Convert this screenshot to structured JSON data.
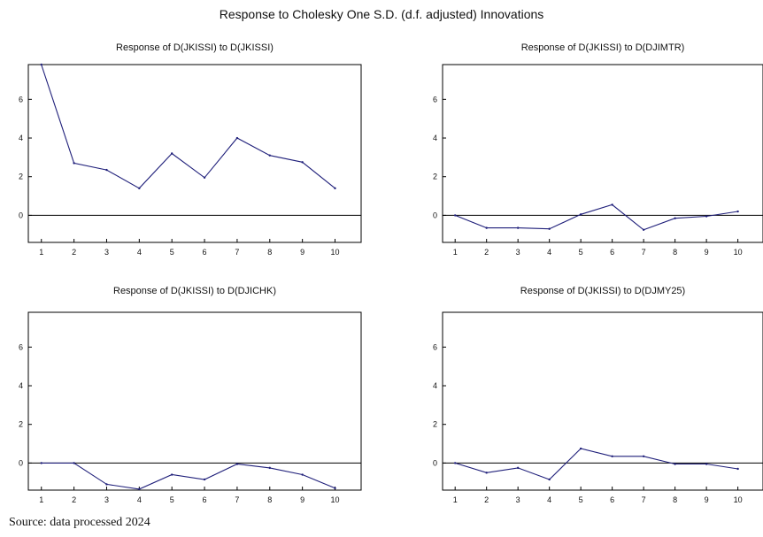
{
  "title": "Response to Cholesky One S.D. (d.f. adjusted) Innovations",
  "source": "Source: data processed 2024",
  "colors": {
    "line": "#1f1f7a",
    "frame": "#000000",
    "zero_line": "#000000"
  },
  "chart_data": [
    {
      "type": "line",
      "title": "Response of D(JKISSI) to D(JKISSI)",
      "x": [
        1,
        2,
        3,
        4,
        5,
        6,
        7,
        8,
        9,
        10
      ],
      "values": [
        7.8,
        2.7,
        2.35,
        1.4,
        3.2,
        1.95,
        4.0,
        3.1,
        2.75,
        1.4
      ],
      "xticks": [
        "1",
        "2",
        "3",
        "4",
        "5",
        "6",
        "7",
        "8",
        "9",
        "10"
      ],
      "yticks": [
        "0",
        "2",
        "4",
        "6"
      ],
      "ylim": [
        -1.4,
        7.8
      ],
      "grid": false
    },
    {
      "type": "line",
      "title": "Response of D(JKISSI) to D(DJIMTR)",
      "x": [
        1,
        2,
        3,
        4,
        5,
        6,
        7,
        8,
        9,
        10
      ],
      "values": [
        0.0,
        -0.65,
        -0.65,
        -0.7,
        0.05,
        0.55,
        -0.75,
        -0.15,
        -0.05,
        0.2
      ],
      "xticks": [
        "1",
        "2",
        "3",
        "4",
        "5",
        "6",
        "7",
        "8",
        "9",
        "10"
      ],
      "yticks": [
        "0",
        "2",
        "4",
        "6"
      ],
      "ylim": [
        -1.4,
        7.8
      ],
      "grid": false
    },
    {
      "type": "line",
      "title": "Response of D(JKISSI) to D(DJICHK)",
      "x": [
        1,
        2,
        3,
        4,
        5,
        6,
        7,
        8,
        9,
        10
      ],
      "values": [
        0.0,
        0.0,
        -1.1,
        -1.35,
        -0.6,
        -0.85,
        -0.05,
        -0.25,
        -0.6,
        -1.3
      ],
      "xticks": [
        "1",
        "2",
        "3",
        "4",
        "5",
        "6",
        "7",
        "8",
        "9",
        "10"
      ],
      "yticks": [
        "0",
        "2",
        "4",
        "6"
      ],
      "ylim": [
        -1.4,
        7.8
      ],
      "grid": false
    },
    {
      "type": "line",
      "title": "Response of D(JKISSI) to D(DJMY25)",
      "x": [
        1,
        2,
        3,
        4,
        5,
        6,
        7,
        8,
        9,
        10
      ],
      "values": [
        0.0,
        -0.5,
        -0.25,
        -0.85,
        0.75,
        0.35,
        0.35,
        -0.05,
        -0.05,
        -0.3
      ],
      "xticks": [
        "1",
        "2",
        "3",
        "4",
        "5",
        "6",
        "7",
        "8",
        "9",
        "10"
      ],
      "yticks": [
        "0",
        "2",
        "4",
        "6"
      ],
      "ylim": [
        -1.4,
        7.8
      ],
      "grid": false
    }
  ]
}
